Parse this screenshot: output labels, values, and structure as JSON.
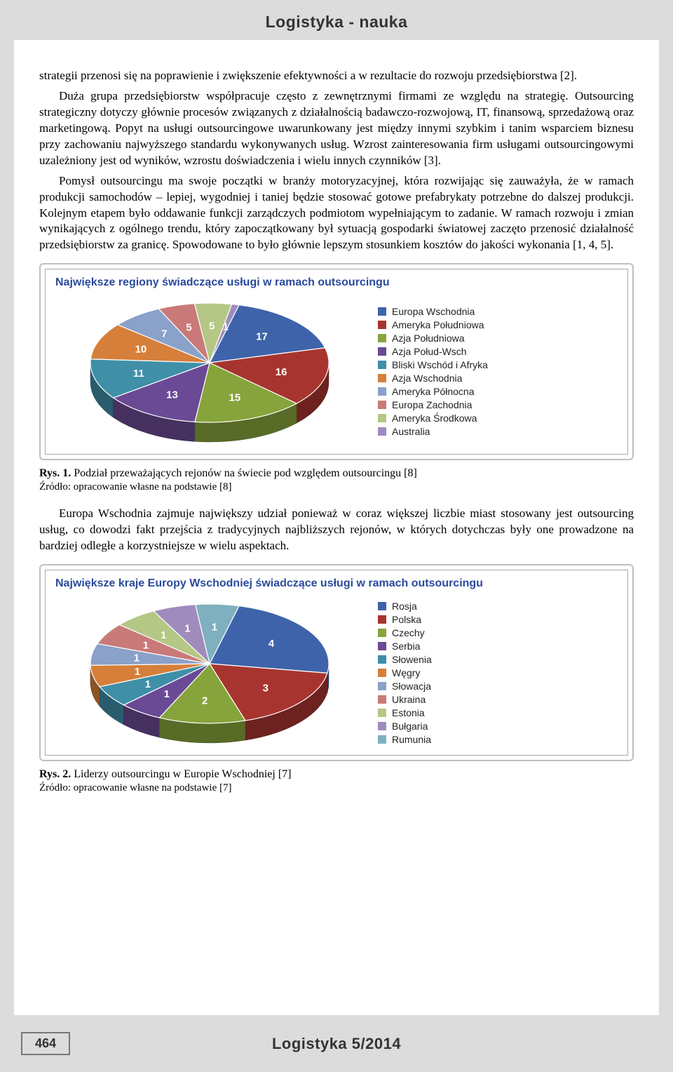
{
  "header": {
    "title": "Logistyka - nauka"
  },
  "para1": "strategii przenosi się na poprawienie i zwiększenie efektywności a w rezultacie do rozwoju przedsiębiorstwa [2].",
  "para2": "Duża grupa przedsiębiorstw współpracuje często z zewnętrznymi firmami ze względu na strategię. Outsourcing strategiczny dotyczy głównie procesów związanych z działalnością badawczo-rozwojową, IT, finansową, sprzedażową oraz marketingową. Popyt na usługi outsourcingowe uwarunkowany jest między innymi szybkim i tanim wsparciem biznesu przy zachowaniu najwyższego standardu wykonywanych usług. Wzrost zainteresowania firm usługami outsourcingowymi uzależniony jest od wyników, wzrostu doświadczenia i wielu innych czynników [3].",
  "para3": "Pomysł outsourcingu ma swoje początki w branży motoryzacyjnej, która rozwijając się zauważyła, że w ramach produkcji samochodów – lepiej, wygodniej i taniej będzie stosować gotowe prefabrykaty potrzebne do dalszej produkcji. Kolejnym etapem było oddawanie funkcji zarządczych podmiotom wypełniającym to zadanie. W ramach rozwoju i zmian wynikających z ogólnego trendu, który zapoczątkowany był sytuacją gospodarki światowej zaczęto przenosić działalność przedsiębiorstw za granicę. Spowodowane to było głównie lepszym stosunkiem kosztów do jakości wykonania [1, 4, 5].",
  "chart1": {
    "type": "pie",
    "title": "Największe regiony świadczące usługi w ramach outsourcingu",
    "title_color": "#2a4a9c",
    "title_fontsize": 16,
    "background_color": "#ffffff",
    "border_color": "#a8a8a8",
    "slices": [
      {
        "label": "Europa Wschodnia",
        "value": 17,
        "color": "#3f63aa"
      },
      {
        "label": "Ameryka Południowa",
        "value": 16,
        "color": "#a8342f"
      },
      {
        "label": "Azja Południowa",
        "value": 15,
        "color": "#87a43c"
      },
      {
        "label": "Azja Połud-Wsch",
        "value": 13,
        "color": "#6a4a94"
      },
      {
        "label": "Bliski Wschód i Afryka",
        "value": 11,
        "color": "#3f8fa8"
      },
      {
        "label": "Azja Wschodnia",
        "value": 10,
        "color": "#d67f3a"
      },
      {
        "label": "Ameryka Północna",
        "value": 7,
        "color": "#8aa1c9"
      },
      {
        "label": "Europa Zachodnia",
        "value": 5,
        "color": "#c97a78"
      },
      {
        "label": "Ameryka Środkowa",
        "value": 5,
        "color": "#b4c784"
      },
      {
        "label": "Australia",
        "value": 1,
        "color": "#9f8cbd"
      }
    ],
    "value_label_color": "#ffffff",
    "value_label_fontsize": 15
  },
  "fig1_caption_bold": "Rys. 1.",
  "fig1_caption": " Podział przeważających rejonów na świecie pod względem outsourcingu [8]",
  "fig1_source": "Źródło: opracowanie własne na podstawie [8]",
  "para4": "Europa Wschodnia zajmuje największy udział ponieważ w coraz większej liczbie miast stosowany jest outsourcing usług, co dowodzi fakt przejścia z tradycyjnych najbliższych rejonów, w których dotychczas były one prowadzone na bardziej odległe a korzystniejsze w wielu aspektach.",
  "chart2": {
    "type": "pie",
    "title": "Największe kraje Europy Wschodniej świadczące usługi w ramach outsourcingu",
    "title_color": "#2a4a9c",
    "title_fontsize": 16,
    "background_color": "#ffffff",
    "border_color": "#a8a8a8",
    "slices": [
      {
        "label": "Rosja",
        "value": 4,
        "color": "#3f63aa"
      },
      {
        "label": "Polska",
        "value": 3,
        "color": "#a8342f"
      },
      {
        "label": "Czechy",
        "value": 2,
        "color": "#87a43c"
      },
      {
        "label": "Serbia",
        "value": 1,
        "color": "#6a4a94"
      },
      {
        "label": "Słowenia",
        "value": 1,
        "color": "#3f8fa8"
      },
      {
        "label": "Węgry",
        "value": 1,
        "color": "#d67f3a"
      },
      {
        "label": "Słowacja",
        "value": 1,
        "color": "#8aa1c9"
      },
      {
        "label": "Ukraina",
        "value": 1,
        "color": "#c97a78"
      },
      {
        "label": "Estonia",
        "value": 1,
        "color": "#b4c784"
      },
      {
        "label": "Bułgaria",
        "value": 1,
        "color": "#9f8cbd"
      },
      {
        "label": "Rumunia",
        "value": 1,
        "color": "#7fb0c0"
      }
    ],
    "value_label_color": "#ffffff",
    "value_label_fontsize": 15
  },
  "fig2_caption_bold": "Rys. 2.",
  "fig2_caption": " Liderzy outsourcingu w Europie Wschodniej [7]",
  "fig2_source": "Źródło: opracowanie własne na podstawie [7]",
  "footer": {
    "page_number": "464",
    "journal": "Logistyka 5/2014"
  }
}
